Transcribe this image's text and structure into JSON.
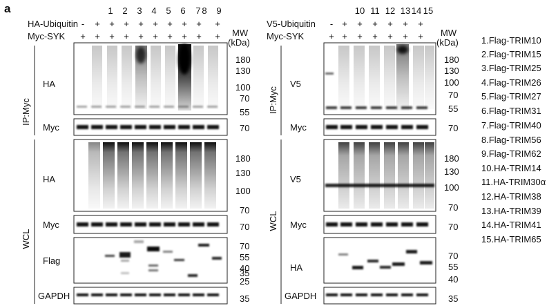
{
  "figure_label": "a",
  "mw_header": [
    "MW",
    "(kDa)"
  ],
  "left_panel": {
    "lane_numbers": [
      "1",
      "2",
      "3",
      "4",
      "5",
      "6",
      "7",
      "8",
      "9"
    ],
    "row1_label": "HA-Ubiquitin",
    "row1_marks": [
      "-",
      "+",
      "+",
      "+",
      "+",
      "+",
      "+",
      "+",
      "+",
      "+"
    ],
    "row2_label": "Myc-SYK",
    "row2_marks": [
      "+",
      "+",
      "+",
      "+",
      "+",
      "+",
      "+",
      "+",
      "+",
      "+"
    ],
    "ip_label": "IP:Myc",
    "wcl_label": "WCL",
    "blots": [
      {
        "label": "HA",
        "markers": [
          "180",
          "130",
          "100",
          "70",
          "55"
        ]
      },
      {
        "label": "Myc",
        "markers": [
          "70"
        ]
      },
      {
        "label": "HA",
        "markers": [
          "180",
          "130",
          "100",
          "70"
        ]
      },
      {
        "label": "Myc",
        "markers": [
          "70"
        ]
      },
      {
        "label": "Flag",
        "markers": [
          "70",
          "55",
          "40",
          "35",
          "25"
        ]
      },
      {
        "label": "GAPDH",
        "markers": [
          "35"
        ]
      }
    ]
  },
  "right_panel": {
    "lane_numbers": [
      "10",
      "11",
      "12",
      "13",
      "14",
      "15"
    ],
    "row1_label": "V5-Ubiquitin",
    "row1_marks": [
      "-",
      "+",
      "+",
      "+",
      "+",
      "+",
      "+"
    ],
    "row2_label": "Myc-SYK",
    "row2_marks": [
      "+",
      "+",
      "+",
      "+",
      "+",
      "+",
      "+"
    ],
    "ip_label": "IP:Myc",
    "wcl_label": "WCL",
    "blots": [
      {
        "label": "V5",
        "markers": [
          "180",
          "130",
          "100",
          "70",
          "55"
        ]
      },
      {
        "label": "Myc",
        "markers": [
          "70"
        ]
      },
      {
        "label": "V5",
        "markers": [
          "180",
          "130",
          "100",
          "70"
        ]
      },
      {
        "label": "Myc",
        "markers": [
          "70"
        ]
      },
      {
        "label": "HA",
        "markers": [
          "70",
          "55",
          "40"
        ]
      },
      {
        "label": "GAPDH",
        "markers": [
          "35"
        ]
      }
    ]
  },
  "legend": [
    "1.Flag-TRIM10",
    "2.Flag-TRIM15",
    "3.Flag-TRIM25",
    "4.Flag-TRIM26",
    "5.Flag-TRIM27",
    "6.Flag-TRIM31",
    "7.Flag-TRIM40",
    "8.Flag-TRIM56",
    "9.Flag-TRIM62",
    "10.HA-TRIM14",
    "11.HA-TRIM30α",
    "12.HA-TRIM38",
    "13.HA-TRIM39",
    "14.HA-TRIM41",
    "15.HA-TRIM65"
  ]
}
